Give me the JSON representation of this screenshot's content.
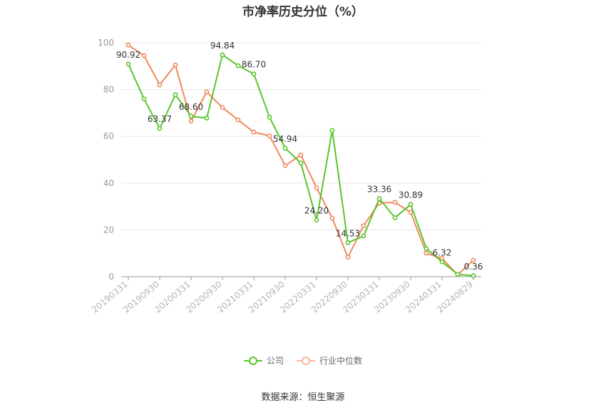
{
  "chart_data": {
    "type": "line",
    "title": "市净率历史分位（%）",
    "source": "数据来源：恒生聚源",
    "ylim": [
      0,
      100
    ],
    "yticks": [
      0,
      20,
      40,
      60,
      80,
      100
    ],
    "x": [
      "20190331",
      "20190630",
      "20190930",
      "20191231",
      "20200331",
      "20200630",
      "20200930",
      "20201231",
      "20210331",
      "20210630",
      "20210930",
      "20211231",
      "20220331",
      "20220630",
      "20220930",
      "20221231",
      "20230331",
      "20230630",
      "20230930",
      "20231231",
      "20240331",
      "20240630",
      "20240829"
    ],
    "xtick_labels": [
      "20190331",
      "20190930",
      "20200331",
      "20200930",
      "20210331",
      "20210930",
      "20220331",
      "20220930",
      "20230331",
      "20230930",
      "20240331",
      "20240829"
    ],
    "series": [
      {
        "name": "公司",
        "color": "#5ac42c",
        "values": [
          90.92,
          76.0,
          63.37,
          77.8,
          68.6,
          67.8,
          94.84,
          90.2,
          86.7,
          68.2,
          54.94,
          48.6,
          24.2,
          62.5,
          14.53,
          17.4,
          33.36,
          25.2,
          30.89,
          12.0,
          6.32,
          1.0,
          0.36
        ]
      },
      {
        "name": "行业中位数",
        "color": "#f08a5d",
        "values": [
          99.0,
          94.5,
          82.0,
          90.5,
          66.5,
          79.0,
          72.3,
          67.0,
          61.8,
          60.2,
          47.5,
          52.0,
          38.0,
          25.0,
          8.3,
          21.8,
          31.5,
          31.8,
          27.5,
          10.0,
          7.8,
          0.8,
          7.0
        ]
      }
    ],
    "data_labels": [
      {
        "series": 0,
        "index": 0,
        "text": "90.92"
      },
      {
        "series": 0,
        "index": 2,
        "text": "63.37"
      },
      {
        "series": 0,
        "index": 4,
        "text": "68.60"
      },
      {
        "series": 0,
        "index": 6,
        "text": "94.84"
      },
      {
        "series": 0,
        "index": 8,
        "text": "86.70"
      },
      {
        "series": 0,
        "index": 10,
        "text": "54.94"
      },
      {
        "series": 0,
        "index": 12,
        "text": "24.20"
      },
      {
        "series": 0,
        "index": 14,
        "text": "14.53"
      },
      {
        "series": 0,
        "index": 16,
        "text": "33.36"
      },
      {
        "series": 0,
        "index": 18,
        "text": "30.89"
      },
      {
        "series": 0,
        "index": 20,
        "text": "6.32"
      },
      {
        "series": 0,
        "index": 22,
        "text": "0.36"
      }
    ],
    "grid": true,
    "legend_position": "bottom"
  }
}
